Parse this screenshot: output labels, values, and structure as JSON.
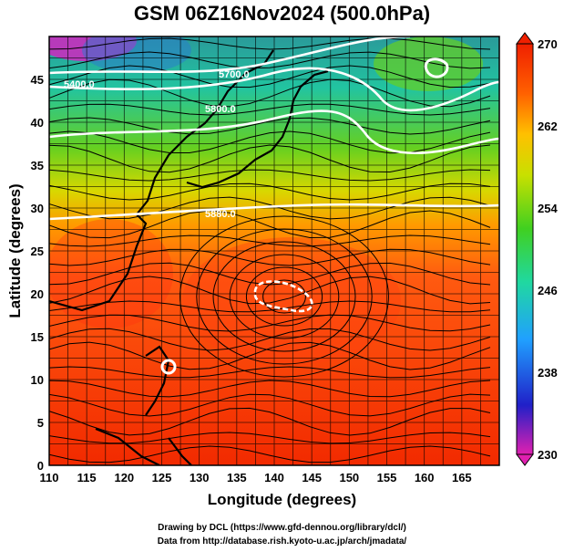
{
  "header": {
    "title": "GSM 06Z16Nov2024 (500.0hPa)"
  },
  "axes": {
    "x_label": "Longitude (degrees)",
    "y_label": "Latitude  (degrees)",
    "x_ticks": [
      "110",
      "115",
      "120",
      "125",
      "130",
      "135",
      "140",
      "145",
      "150",
      "155",
      "160",
      "165"
    ],
    "y_ticks": [
      "0",
      "5",
      "10",
      "15",
      "20",
      "25",
      "30",
      "35",
      "40",
      "45"
    ],
    "x_range": [
      110,
      170
    ],
    "y_range": [
      0,
      50
    ]
  },
  "colorbar": {
    "ticks": [
      "270",
      "262",
      "254",
      "246",
      "238",
      "230"
    ],
    "range": [
      230,
      270
    ],
    "stops": [
      "#e020b0",
      "#2020c8",
      "#20a0ff",
      "#20d8a0",
      "#40d020",
      "#c8e000",
      "#ffc000",
      "#ff6000",
      "#f02000"
    ]
  },
  "contour_labels": [
    "5400.0",
    "5700.0",
    "5800.0",
    "5880.0"
  ],
  "credits": {
    "line1": "Drawing by DCL (https://www.gfd-dennou.org/library/dcl/)",
    "line2": "Data from http://database.rish.kyoto-u.ac.jp/arch/jmadata/"
  }
}
